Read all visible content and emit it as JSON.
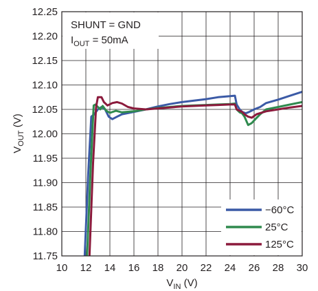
{
  "chart_data": {
    "type": "line",
    "xlabel": {
      "main": "V",
      "sub": "IN",
      "unit": " (V)"
    },
    "ylabel": {
      "main": "V",
      "sub": "OUT",
      "unit": " (V)"
    },
    "xlim": [
      10,
      30
    ],
    "ylim": [
      11.75,
      12.25
    ],
    "xticks": [
      "10",
      "12",
      "14",
      "16",
      "18",
      "20",
      "22",
      "24",
      "26",
      "28",
      "30"
    ],
    "yticks": [
      "11.75",
      "11.80",
      "11.85",
      "11.90",
      "11.95",
      "12.00",
      "12.05",
      "12.10",
      "12.15",
      "12.20",
      "12.25"
    ],
    "grid": true,
    "legend_position": "bottom-right",
    "annotation": {
      "line1": "SHUNT = GND",
      "line2_main": "I",
      "line2_sub": "OUT",
      "line2_rest": " = 50mA"
    },
    "series": [
      {
        "name": "−60°C",
        "color": "#3b5aa6",
        "x": [
          11.9,
          12.2,
          12.45,
          12.7,
          13.0,
          13.3,
          13.6,
          13.9,
          14.2,
          14.6,
          15.0,
          16.0,
          17.0,
          18.0,
          19.0,
          20.0,
          21.0,
          22.0,
          23.0,
          24.0,
          24.4,
          24.55,
          24.8,
          25.0,
          25.3,
          25.6,
          26.0,
          26.5,
          27.0,
          28.0,
          29.0,
          30.0
        ],
        "y": [
          11.75,
          11.92,
          12.035,
          12.04,
          12.05,
          12.055,
          12.05,
          12.035,
          12.03,
          12.035,
          12.04,
          12.045,
          12.05,
          12.056,
          12.061,
          12.065,
          12.068,
          12.071,
          12.075,
          12.077,
          12.078,
          12.06,
          12.05,
          12.045,
          12.042,
          12.045,
          12.05,
          12.055,
          12.063,
          12.07,
          12.078,
          12.086
        ]
      },
      {
        "name": "25°C",
        "color": "#2f8a4e",
        "x": [
          12.1,
          12.4,
          12.65,
          12.8,
          13.0,
          13.2,
          13.4,
          13.7,
          14.0,
          14.5,
          15.0,
          16.0,
          17.0,
          18.0,
          19.0,
          20.0,
          21.0,
          22.0,
          23.0,
          24.0,
          24.4,
          24.55,
          24.8,
          25.0,
          25.2,
          25.5,
          25.8,
          26.1,
          26.5,
          27.0,
          28.0,
          29.0,
          30.0
        ],
        "y": [
          11.75,
          11.93,
          12.058,
          12.06,
          12.055,
          12.05,
          12.057,
          12.047,
          12.043,
          12.047,
          12.044,
          12.046,
          12.05,
          12.053,
          12.055,
          12.057,
          12.058,
          12.059,
          12.06,
          12.061,
          12.062,
          12.05,
          12.044,
          12.042,
          12.035,
          12.018,
          12.022,
          12.03,
          12.04,
          12.05,
          12.055,
          12.06,
          12.065
        ]
      },
      {
        "name": "125°C",
        "color": "#8b1a3c",
        "x": [
          12.3,
          12.6,
          12.85,
          13.0,
          13.3,
          13.5,
          13.8,
          14.2,
          14.6,
          15.0,
          15.5,
          16.0,
          17.0,
          18.0,
          19.0,
          20.0,
          21.0,
          22.0,
          23.0,
          24.0,
          24.4,
          24.55,
          24.8,
          25.0,
          25.2,
          25.5,
          25.8,
          26.2,
          27.0,
          28.0,
          29.0,
          30.0
        ],
        "y": [
          11.75,
          11.94,
          12.055,
          12.075,
          12.075,
          12.065,
          12.058,
          12.063,
          12.065,
          12.062,
          12.055,
          12.052,
          12.05,
          12.052,
          12.054,
          12.056,
          12.057,
          12.058,
          12.059,
          12.06,
          12.06,
          12.05,
          12.047,
          12.045,
          12.04,
          12.035,
          12.033,
          12.04,
          12.046,
          12.05,
          12.054,
          12.057
        ]
      }
    ]
  }
}
